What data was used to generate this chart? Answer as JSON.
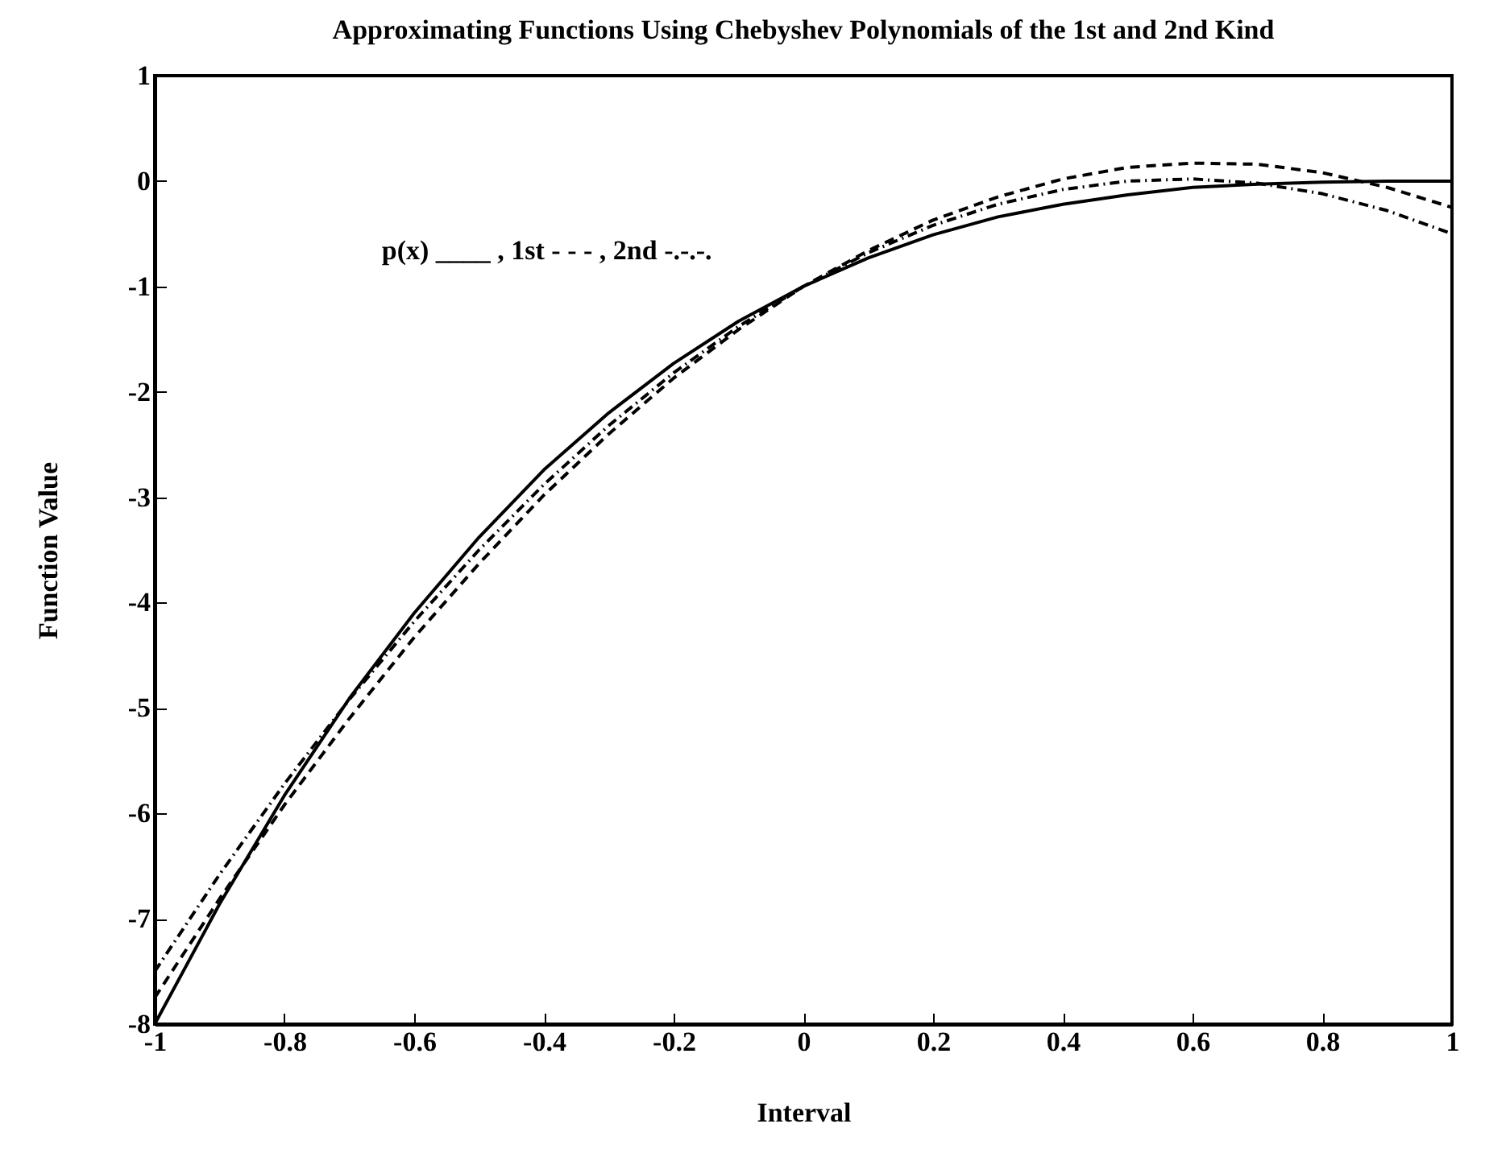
{
  "chart_data": {
    "type": "line",
    "title": "Approximating Functions Using Chebyshev Polynomials of the 1st and 2nd Kind",
    "xlabel": "Interval",
    "ylabel": "Function Value",
    "x": [
      -1,
      -0.9,
      -0.8,
      -0.7,
      -0.6,
      -0.5,
      -0.4,
      -0.3,
      -0.2,
      -0.1,
      0,
      0.1,
      0.2,
      0.3,
      0.4,
      0.5,
      0.6,
      0.7,
      0.8,
      0.9,
      1
    ],
    "series": [
      {
        "color": "#000000",
        "line_style": "solid",
        "values": [
          -8,
          -6.86,
          -5.83,
          -4.91,
          -4.1,
          -3.38,
          -2.74,
          -2.2,
          -1.73,
          -1.33,
          -1,
          -0.73,
          -0.51,
          -0.34,
          -0.22,
          -0.13,
          -0.06,
          -0.03,
          -0.01,
          0,
          0
        ]
      },
      {
        "color": "#000000",
        "line_style": "dashed",
        "values": [
          -7.75,
          -6.81,
          -5.92,
          -5.1,
          -4.33,
          -3.63,
          -2.98,
          -2.4,
          -1.87,
          -1.41,
          -1,
          -0.66,
          -0.37,
          -0.15,
          0.02,
          0.13,
          0.17,
          0.16,
          0.08,
          -0.06,
          -0.25
        ]
      },
      {
        "color": "#000000",
        "line_style": "dotted",
        "values": [
          -7.5,
          -6.58,
          -5.72,
          -4.92,
          -4.18,
          -3.5,
          -2.88,
          -2.32,
          -1.82,
          -1.38,
          -1,
          -0.68,
          -0.42,
          -0.22,
          -0.08,
          0,
          0.02,
          -0.02,
          -0.12,
          -0.28,
          -0.5
        ]
      }
    ],
    "annotations": [
      "p(x) ____ , 1st - - - , 2nd -.-.-."
    ],
    "xlim": [
      -1,
      1
    ],
    "xticks": [
      -1,
      -0.8,
      -0.6,
      -0.4,
      -0.2,
      0,
      0.2,
      0.4,
      0.6,
      0.8,
      1
    ],
    "ylim": [
      -8,
      1
    ],
    "yticks": [
      -8,
      -7,
      -6,
      -5,
      -4,
      -3,
      -2,
      -1,
      0,
      1
    ],
    "grid": false
  }
}
